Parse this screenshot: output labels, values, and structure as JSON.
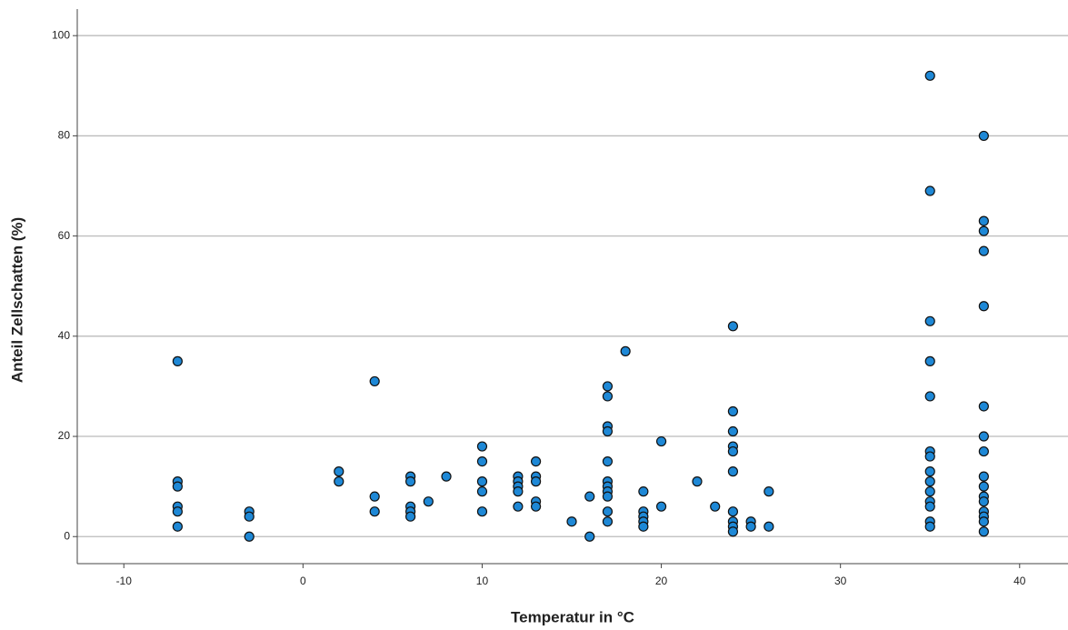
{
  "chart_data": {
    "type": "scatter",
    "x_label": "Temperatur in °C",
    "y_label": "Anteil Zellschatten (%)",
    "color": "#1e88d6",
    "x": [
      -7,
      -7,
      -7,
      -7,
      -7,
      -7,
      -3,
      -3,
      -3,
      2,
      2,
      4,
      4,
      4,
      6,
      6,
      6,
      6,
      6,
      7,
      8,
      10,
      10,
      10,
      10,
      10,
      12,
      12,
      12,
      12,
      12,
      13,
      13,
      13,
      13,
      13,
      15,
      16,
      16,
      17,
      17,
      17,
      17,
      17,
      17,
      17,
      17,
      17,
      17,
      17,
      18,
      19,
      19,
      19,
      19,
      19,
      20,
      20,
      22,
      23,
      24,
      24,
      24,
      24,
      24,
      24,
      24,
      24,
      24,
      24,
      25,
      25,
      26,
      26,
      35,
      35,
      35,
      35,
      35,
      35,
      35,
      35,
      35,
      35,
      35,
      35,
      35,
      35,
      38,
      38,
      38,
      38,
      38,
      38,
      38,
      38,
      38,
      38,
      38,
      38,
      38,
      38,
      38,
      38
    ],
    "values": [
      35,
      11,
      10,
      6,
      5,
      2,
      5,
      4,
      0,
      13,
      11,
      31,
      8,
      5,
      12,
      11,
      6,
      5,
      4,
      7,
      12,
      18,
      15,
      11,
      9,
      5,
      12,
      11,
      10,
      9,
      6,
      15,
      12,
      11,
      7,
      6,
      3,
      8,
      0,
      30,
      28,
      22,
      21,
      15,
      11,
      10,
      9,
      8,
      5,
      3,
      37,
      9,
      5,
      4,
      3,
      2,
      19,
      6,
      11,
      6,
      42,
      25,
      21,
      18,
      17,
      13,
      5,
      3,
      2,
      1,
      3,
      2,
      9,
      2,
      92,
      69,
      43,
      35,
      28,
      17,
      16,
      13,
      11,
      9,
      7,
      6,
      3,
      2,
      80,
      63,
      61,
      57,
      46,
      26,
      20,
      17,
      12,
      10,
      8,
      7,
      5,
      4,
      3,
      1
    ],
    "xlim": [
      -12.6,
      42.7
    ],
    "ylim": [
      -5.4,
      105.3
    ],
    "xticks": [
      -10,
      0,
      10,
      20,
      30,
      40
    ],
    "yticks": [
      0,
      20,
      40,
      60,
      80,
      100
    ],
    "grid": true
  }
}
